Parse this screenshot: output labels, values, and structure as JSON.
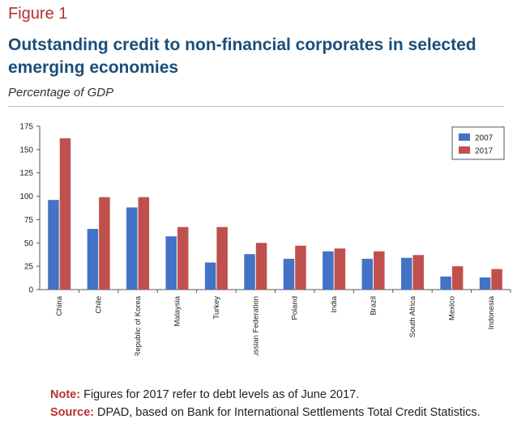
{
  "figure": {
    "label": "Figure 1",
    "title": "Outstanding credit to non-financial corporates in selected emerging economies",
    "subtitle": "Percentage of GDP"
  },
  "notes": {
    "note_key": "Note:",
    "note_text": "Figures for 2017 refer to debt levels as of June 2017.",
    "source_key": "Source:",
    "source_text": "DPAD, based on Bank for International Settlements Total Credit Statistics."
  },
  "chart_data": {
    "type": "bar",
    "categories": [
      "China",
      "Chile",
      "Republic of Korea",
      "Malaysia",
      "Turkey",
      "Russian Federation",
      "Poland",
      "India",
      "Brazil",
      "South Africa",
      "Mexico",
      "Indonesia"
    ],
    "series": [
      {
        "name": "2007",
        "color": "#4472c4",
        "values": [
          96,
          65,
          88,
          57,
          29,
          38,
          33,
          41,
          33,
          34,
          14,
          13
        ]
      },
      {
        "name": "2017",
        "color": "#c0504d",
        "values": [
          162,
          99,
          99,
          67,
          67,
          50,
          47,
          44,
          41,
          37,
          25,
          22
        ]
      }
    ],
    "yticks": [
      0,
      25,
      50,
      75,
      100,
      125,
      150,
      175
    ],
    "ylim": [
      0,
      175
    ],
    "legend_position": "top-right",
    "grid": false
  }
}
